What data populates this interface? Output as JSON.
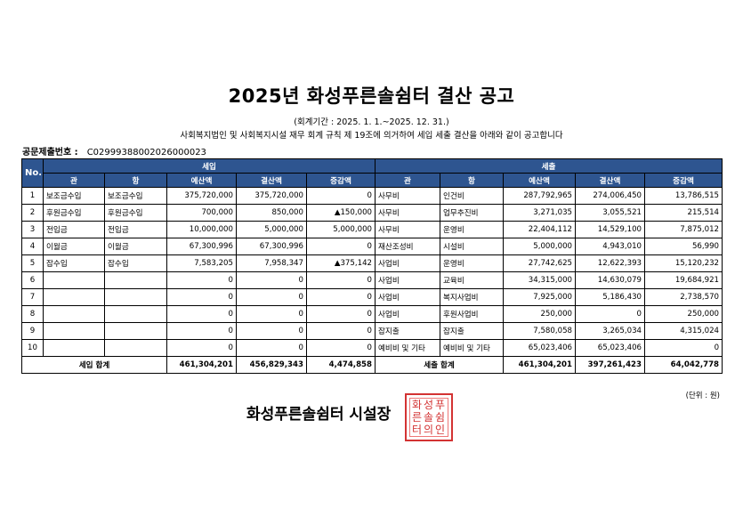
{
  "title": "2025년 화성푸른솔쉼터 결산 공고",
  "period": "(회계기간 : 2025. 1. 1.~2025. 12. 31.)",
  "notice": "사회복지법인 및 사회복지시설 재무 회계 규칙 제 19조에 의거하여 세입 세출 결산을 아래와 같이 공고합니다",
  "submission": {
    "label": "공문제출번호 :",
    "value": "C02999388002026000023"
  },
  "headers": {
    "no": "No.",
    "revenue": "세입",
    "expense": "세출",
    "gwan": "관",
    "hang": "항",
    "budget": "예산액",
    "settled": "결산액",
    "change": "증감액"
  },
  "rows": [
    {
      "no": "1",
      "r_gwan": "보조금수입",
      "r_hang": "보조금수입",
      "r_budget": "375,720,000",
      "r_settled": "375,720,000",
      "r_change": "0",
      "e_gwan": "사무비",
      "e_hang": "인건비",
      "e_budget": "287,792,965",
      "e_settled": "274,006,450",
      "e_change": "13,786,515"
    },
    {
      "no": "2",
      "r_gwan": "후원금수입",
      "r_hang": "후원금수입",
      "r_budget": "700,000",
      "r_settled": "850,000",
      "r_change": "▲150,000",
      "e_gwan": "사무비",
      "e_hang": "업무추진비",
      "e_budget": "3,271,035",
      "e_settled": "3,055,521",
      "e_change": "215,514"
    },
    {
      "no": "3",
      "r_gwan": "전입금",
      "r_hang": "전입금",
      "r_budget": "10,000,000",
      "r_settled": "5,000,000",
      "r_change": "5,000,000",
      "e_gwan": "사무비",
      "e_hang": "운영비",
      "e_budget": "22,404,112",
      "e_settled": "14,529,100",
      "e_change": "7,875,012"
    },
    {
      "no": "4",
      "r_gwan": "이월금",
      "r_hang": "이월금",
      "r_budget": "67,300,996",
      "r_settled": "67,300,996",
      "r_change": "0",
      "e_gwan": "재산조성비",
      "e_hang": "시설비",
      "e_budget": "5,000,000",
      "e_settled": "4,943,010",
      "e_change": "56,990"
    },
    {
      "no": "5",
      "r_gwan": "잡수입",
      "r_hang": "잡수입",
      "r_budget": "7,583,205",
      "r_settled": "7,958,347",
      "r_change": "▲375,142",
      "e_gwan": "사업비",
      "e_hang": "운영비",
      "e_budget": "27,742,625",
      "e_settled": "12,622,393",
      "e_change": "15,120,232"
    },
    {
      "no": "6",
      "r_gwan": "",
      "r_hang": "",
      "r_budget": "0",
      "r_settled": "0",
      "r_change": "0",
      "e_gwan": "사업비",
      "e_hang": "교육비",
      "e_budget": "34,315,000",
      "e_settled": "14,630,079",
      "e_change": "19,684,921"
    },
    {
      "no": "7",
      "r_gwan": "",
      "r_hang": "",
      "r_budget": "0",
      "r_settled": "0",
      "r_change": "0",
      "e_gwan": "사업비",
      "e_hang": "복지사업비",
      "e_budget": "7,925,000",
      "e_settled": "5,186,430",
      "e_change": "2,738,570"
    },
    {
      "no": "8",
      "r_gwan": "",
      "r_hang": "",
      "r_budget": "0",
      "r_settled": "0",
      "r_change": "0",
      "e_gwan": "사업비",
      "e_hang": "후원사업비",
      "e_budget": "250,000",
      "e_settled": "0",
      "e_change": "250,000"
    },
    {
      "no": "9",
      "r_gwan": "",
      "r_hang": "",
      "r_budget": "0",
      "r_settled": "0",
      "r_change": "0",
      "e_gwan": "잡지출",
      "e_hang": "잡지출",
      "e_budget": "7,580,058",
      "e_settled": "3,265,034",
      "e_change": "4,315,024"
    },
    {
      "no": "10",
      "r_gwan": "",
      "r_hang": "",
      "r_budget": "0",
      "r_settled": "0",
      "r_change": "0",
      "e_gwan": "예비비 및 기타",
      "e_hang": "예비비 및 기타",
      "e_budget": "65,023,406",
      "e_settled": "65,023,406",
      "e_change": "0"
    }
  ],
  "totals": {
    "r_label": "세입 합계",
    "r_budget": "461,304,201",
    "r_settled": "456,829,343",
    "r_change": "4,474,858",
    "e_label": "세출 합계",
    "e_budget": "461,304,201",
    "e_settled": "397,261,423",
    "e_change": "64,042,778"
  },
  "unit": "(단위 : 원)",
  "signature": "화성푸른솔쉼터 시설장",
  "seal": {
    "chars": [
      "화",
      "성",
      "푸",
      "른",
      "솔",
      "쉼",
      "터",
      "의",
      "인"
    ],
    "color": "#d33333"
  },
  "colors": {
    "header_bg": "#2e5590",
    "header_text": "#ffffff"
  }
}
